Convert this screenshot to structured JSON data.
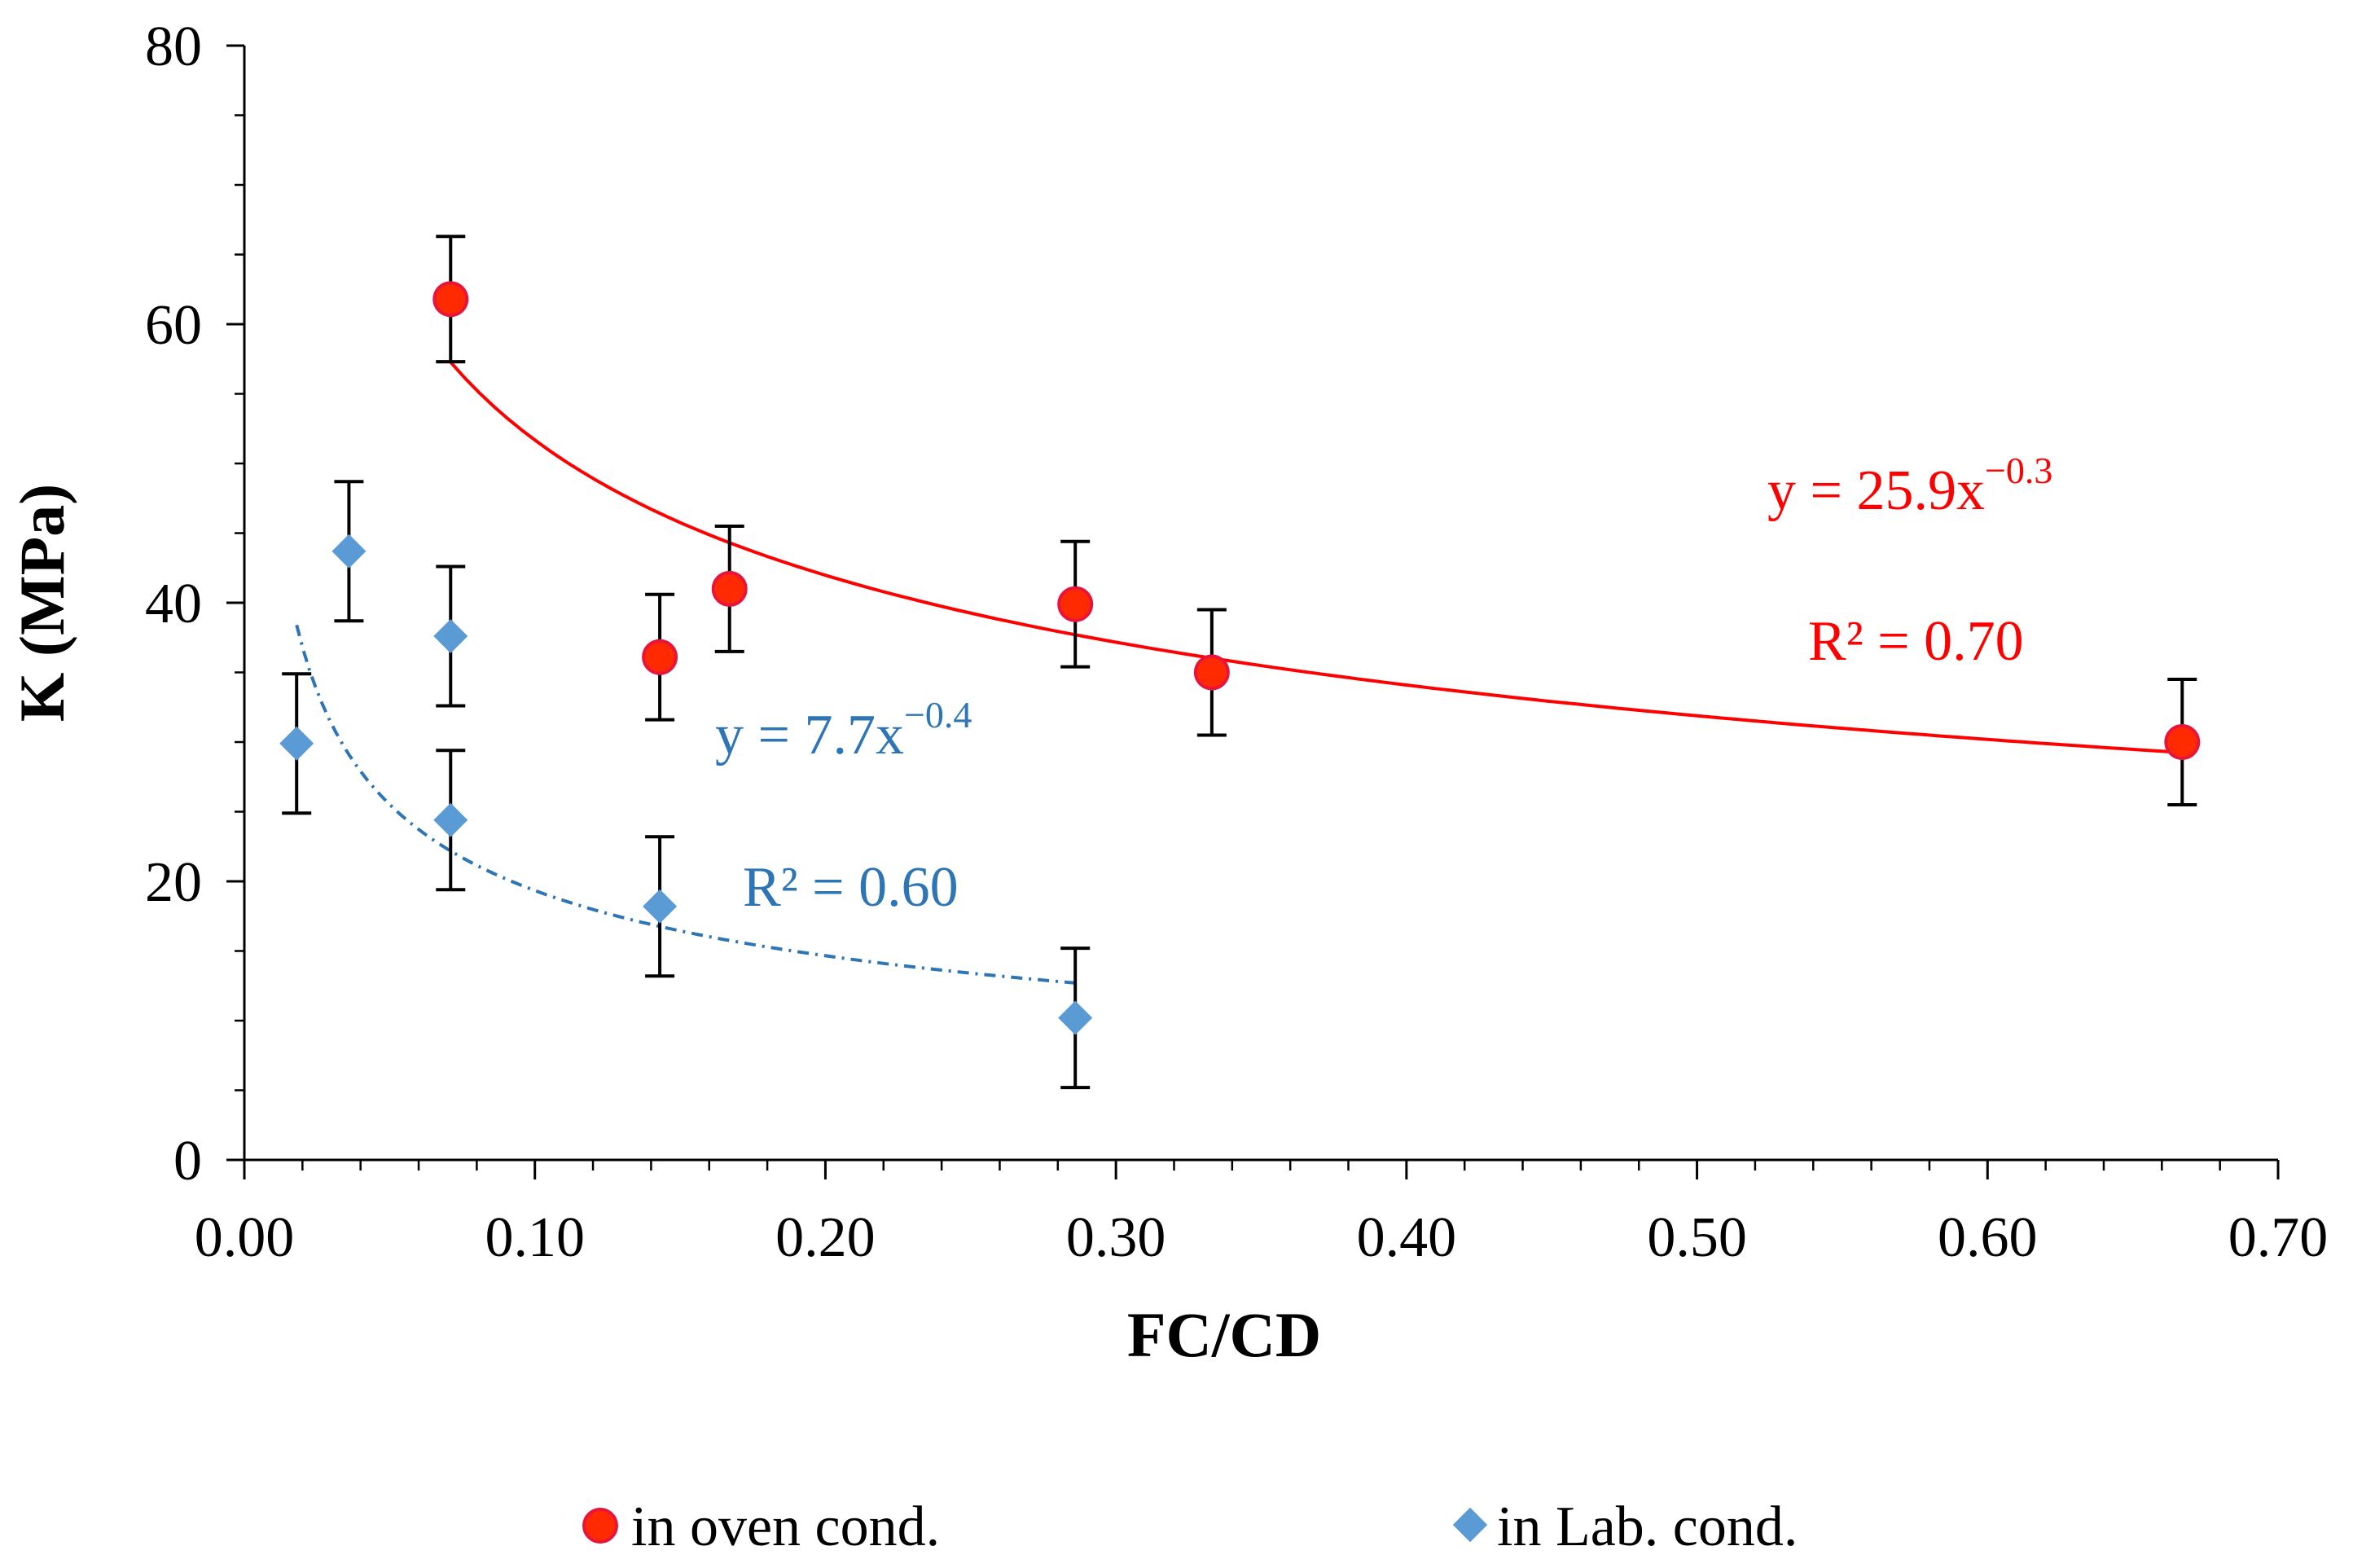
{
  "chart_data": {
    "type": "scatter",
    "title": "",
    "xlabel": "FC/CD",
    "ylabel": "K (MPa)",
    "xlim": [
      0,
      0.7
    ],
    "ylim": [
      0,
      80
    ],
    "x_ticks": [
      "0.00",
      "0.10",
      "0.20",
      "0.30",
      "0.40",
      "0.50",
      "0.60",
      "0.70"
    ],
    "x_tick_values": [
      0,
      0.1,
      0.2,
      0.3,
      0.4,
      0.5,
      0.6,
      0.7
    ],
    "y_ticks": [
      "0",
      "20",
      "40",
      "60",
      "80"
    ],
    "y_tick_values": [
      0,
      20,
      40,
      60,
      80
    ],
    "grid": false,
    "legend_position": "bottom",
    "series": [
      {
        "name": "in oven cond.",
        "marker": "circle",
        "color": "#ff2a00",
        "edge_color": "#e8143c",
        "x": [
          0.071,
          0.143,
          0.167,
          0.286,
          0.333,
          0.667
        ],
        "y": [
          61.8,
          36.1,
          41.0,
          39.9,
          35.0,
          30.0
        ],
        "error": [
          4.5,
          4.5,
          4.5,
          4.5,
          4.5,
          4.5
        ],
        "trendline": {
          "type": "power",
          "a": 25.9,
          "b": -0.3,
          "x_range": [
            0.071,
            0.667
          ],
          "color": "#ff0000",
          "dash": "solid",
          "equation": "y = 25.9x",
          "exponent": "−0.3",
          "r2": "R² = 0.70"
        }
      },
      {
        "name": "in Lab. cond.",
        "marker": "diamond",
        "color": "#5b9bd5",
        "x": [
          0.018,
          0.036,
          0.071,
          0.071,
          0.143,
          0.286
        ],
        "y": [
          29.9,
          43.7,
          37.6,
          24.4,
          18.2,
          10.2
        ],
        "error": [
          5.0,
          5.0,
          5.0,
          5.0,
          5.0,
          5.0
        ],
        "trendline": {
          "type": "power",
          "a": 7.7,
          "b": -0.4,
          "x_range": [
            0.018,
            0.286
          ],
          "color": "#2e75b6",
          "dash": "dashdot",
          "equation": "y = 7.7x",
          "exponent": "−0.4",
          "r2": "R² = 0.60"
        }
      }
    ]
  }
}
